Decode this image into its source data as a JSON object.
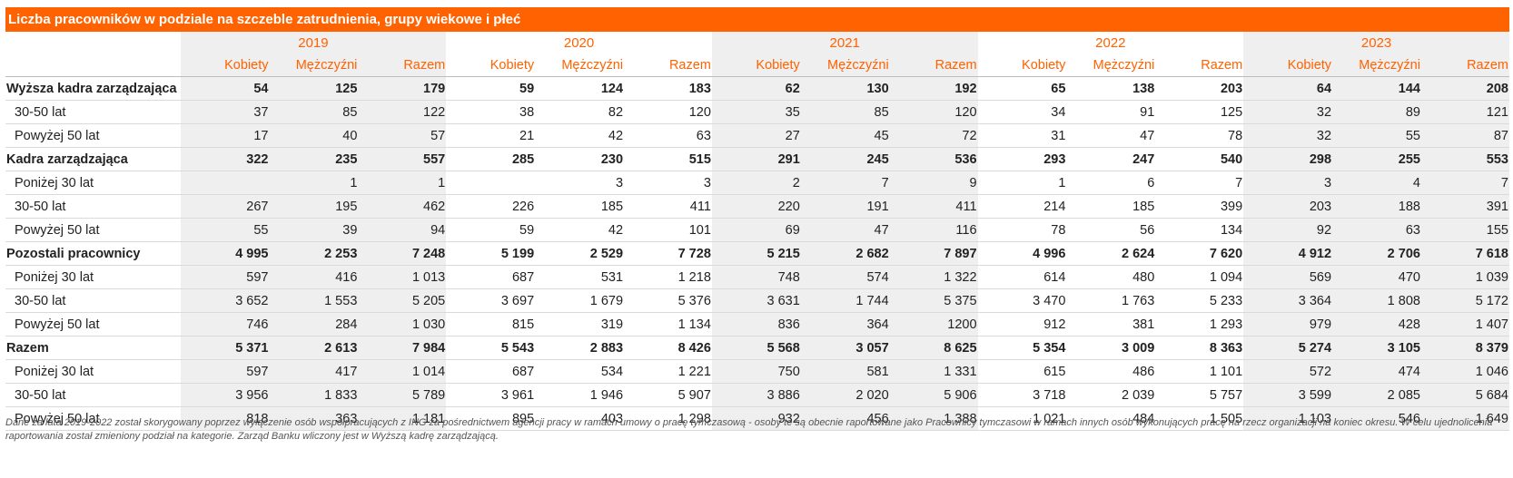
{
  "title": "Liczba pracowników w podziale na szczeble zatrudnienia, grupy wiekowe i płeć",
  "years": [
    "2019",
    "2020",
    "2021",
    "2022",
    "2023"
  ],
  "column_headers": [
    "Kobiety",
    "Mężczyźni",
    "Razem"
  ],
  "rows": [
    {
      "label": "Wyższa kadra zarządzająca",
      "type": "main",
      "values": [
        "54",
        "125",
        "179",
        "59",
        "124",
        "183",
        "62",
        "130",
        "192",
        "65",
        "138",
        "203",
        "64",
        "144",
        "208"
      ]
    },
    {
      "label": "30-50 lat",
      "type": "sub",
      "values": [
        "37",
        "85",
        "122",
        "38",
        "82",
        "120",
        "35",
        "85",
        "120",
        "34",
        "91",
        "125",
        "32",
        "89",
        "121"
      ]
    },
    {
      "label": "Powyżej 50 lat",
      "type": "sub",
      "values": [
        "17",
        "40",
        "57",
        "21",
        "42",
        "63",
        "27",
        "45",
        "72",
        "31",
        "47",
        "78",
        "32",
        "55",
        "87"
      ]
    },
    {
      "label": "Kadra zarządzająca",
      "type": "main",
      "values": [
        "322",
        "235",
        "557",
        "285",
        "230",
        "515",
        "291",
        "245",
        "536",
        "293",
        "247",
        "540",
        "298",
        "255",
        "553"
      ]
    },
    {
      "label": "Poniżej 30 lat",
      "type": "sub",
      "values": [
        "",
        "1",
        "1",
        "",
        "3",
        "3",
        "2",
        "7",
        "9",
        "1",
        "6",
        "7",
        "3",
        "4",
        "7"
      ]
    },
    {
      "label": "30-50 lat",
      "type": "sub",
      "values": [
        "267",
        "195",
        "462",
        "226",
        "185",
        "411",
        "220",
        "191",
        "411",
        "214",
        "185",
        "399",
        "203",
        "188",
        "391"
      ]
    },
    {
      "label": "Powyżej 50 lat",
      "type": "sub",
      "values": [
        "55",
        "39",
        "94",
        "59",
        "42",
        "101",
        "69",
        "47",
        "116",
        "78",
        "56",
        "134",
        "92",
        "63",
        "155"
      ]
    },
    {
      "label": "Pozostali pracownicy",
      "type": "main",
      "values": [
        "4 995",
        "2 253",
        "7 248",
        "5 199",
        "2 529",
        "7 728",
        "5 215",
        "2 682",
        "7 897",
        "4 996",
        "2 624",
        "7 620",
        "4 912",
        "2 706",
        "7 618"
      ]
    },
    {
      "label": "Poniżej 30 lat",
      "type": "sub",
      "values": [
        "597",
        "416",
        "1 013",
        "687",
        "531",
        "1 218",
        "748",
        "574",
        "1 322",
        "614",
        "480",
        "1 094",
        "569",
        "470",
        "1 039"
      ]
    },
    {
      "label": "30-50 lat",
      "type": "sub",
      "values": [
        "3 652",
        "1 553",
        "5 205",
        "3 697",
        "1 679",
        "5 376",
        "3 631",
        "1 744",
        "5 375",
        "3 470",
        "1 763",
        "5 233",
        "3 364",
        "1 808",
        "5 172"
      ]
    },
    {
      "label": "Powyżej 50 lat",
      "type": "sub",
      "values": [
        "746",
        "284",
        "1 030",
        "815",
        "319",
        "1 134",
        "836",
        "364",
        "1200",
        "912",
        "381",
        "1 293",
        "979",
        "428",
        "1 407"
      ]
    },
    {
      "label": "Razem",
      "type": "main",
      "values": [
        "5 371",
        "2 613",
        "7 984",
        "5 543",
        "2 883",
        "8 426",
        "5 568",
        "3 057",
        "8 625",
        "5 354",
        "3 009",
        "8 363",
        "5 274",
        "3 105",
        "8 379"
      ]
    },
    {
      "label": "Poniżej 30 lat",
      "type": "sub",
      "values": [
        "597",
        "417",
        "1 014",
        "687",
        "534",
        "1 221",
        "750",
        "581",
        "1 331",
        "615",
        "486",
        "1 101",
        "572",
        "474",
        "1 046"
      ]
    },
    {
      "label": "30-50 lat",
      "type": "sub",
      "values": [
        "3 956",
        "1 833",
        "5 789",
        "3 961",
        "1 946",
        "5 907",
        "3 886",
        "2 020",
        "5 906",
        "3 718",
        "2 039",
        "5 757",
        "3 599",
        "2 085",
        "5 684"
      ]
    },
    {
      "label": "Powyżej 50 lat",
      "type": "sub",
      "values": [
        "818",
        "363",
        "1 181",
        "895",
        "403",
        "1 298",
        "932",
        "456",
        "1 388",
        "1 021",
        "484",
        "1 505",
        "1 103",
        "546",
        "1 649"
      ]
    }
  ],
  "footnote": "Dane za lata 2019-2022 został skorygowany poprzez wyłączenie osób współpracujących z ING za pośrednictwem agencji pracy w ramach umowy o pracę tymczasową - osoby te są obecnie raportowane jako Pracownicy tymczasowi w ramach innych osób wykonujących pracę na rzecz organizacji na koniec okresu. W celu ujednolicenia raportowania został zmieniony podział na kategorie. Zarząd Banku wliczony jest w Wyższą kadrę zarządzającą.",
  "colors": {
    "accent": "#FF6200",
    "shade": "#efefef",
    "text": "#222222"
  }
}
